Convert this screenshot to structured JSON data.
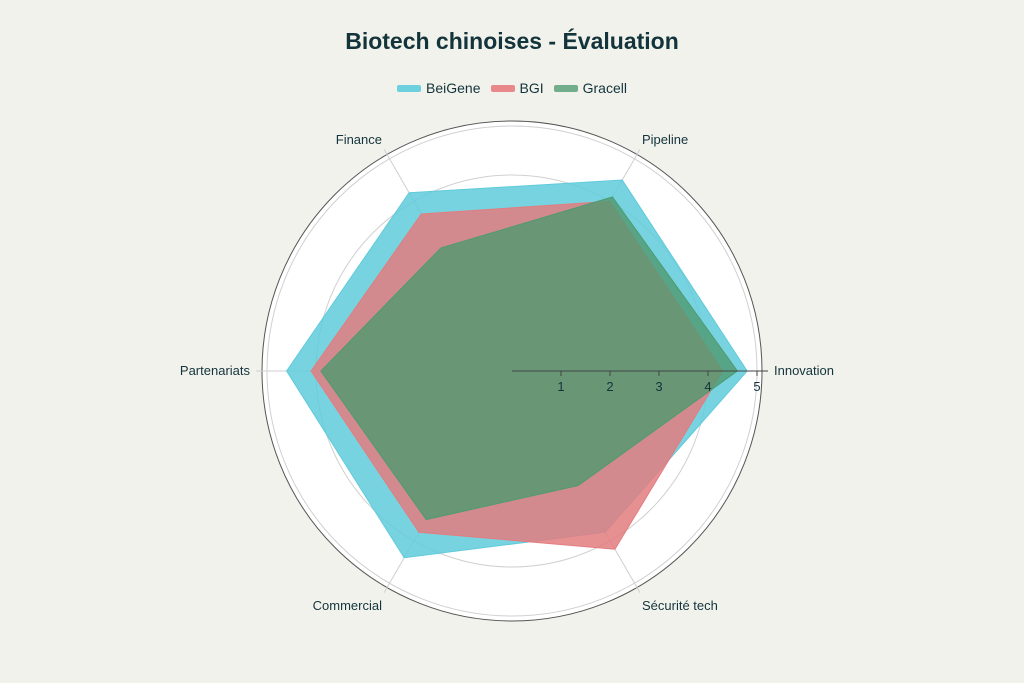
{
  "title": "Biotech chinoises - Évaluation",
  "legend": [
    {
      "label": "BeiGene",
      "color": "#5fcbdb"
    },
    {
      "label": "BGI",
      "color": "#e37c7f"
    },
    {
      "label": "Gracell",
      "color": "#5fa57f"
    }
  ],
  "chart_data": {
    "type": "radar",
    "title": "Biotech chinoises - Évaluation",
    "categories": [
      "Innovation",
      "Pipeline",
      "Finance",
      "Partenariats",
      "Commercial",
      "Sécurité tech"
    ],
    "series": [
      {
        "name": "BeiGene",
        "color": "#5fcbdb",
        "values": [
          4.8,
          4.5,
          4.2,
          4.6,
          4.4,
          3.8
        ]
      },
      {
        "name": "BGI",
        "color": "#e37c7f",
        "values": [
          4.3,
          4.0,
          3.7,
          4.1,
          3.8,
          4.2
        ]
      },
      {
        "name": "Gracell",
        "color": "#5fa57f",
        "values": [
          4.6,
          4.1,
          2.9,
          3.9,
          3.5,
          2.7
        ]
      }
    ],
    "radial_ticks": [
      "1",
      "2",
      "3",
      "4",
      "5"
    ],
    "radial_range": [
      0,
      5.1
    ],
    "grid": true,
    "legend_position": "top"
  }
}
